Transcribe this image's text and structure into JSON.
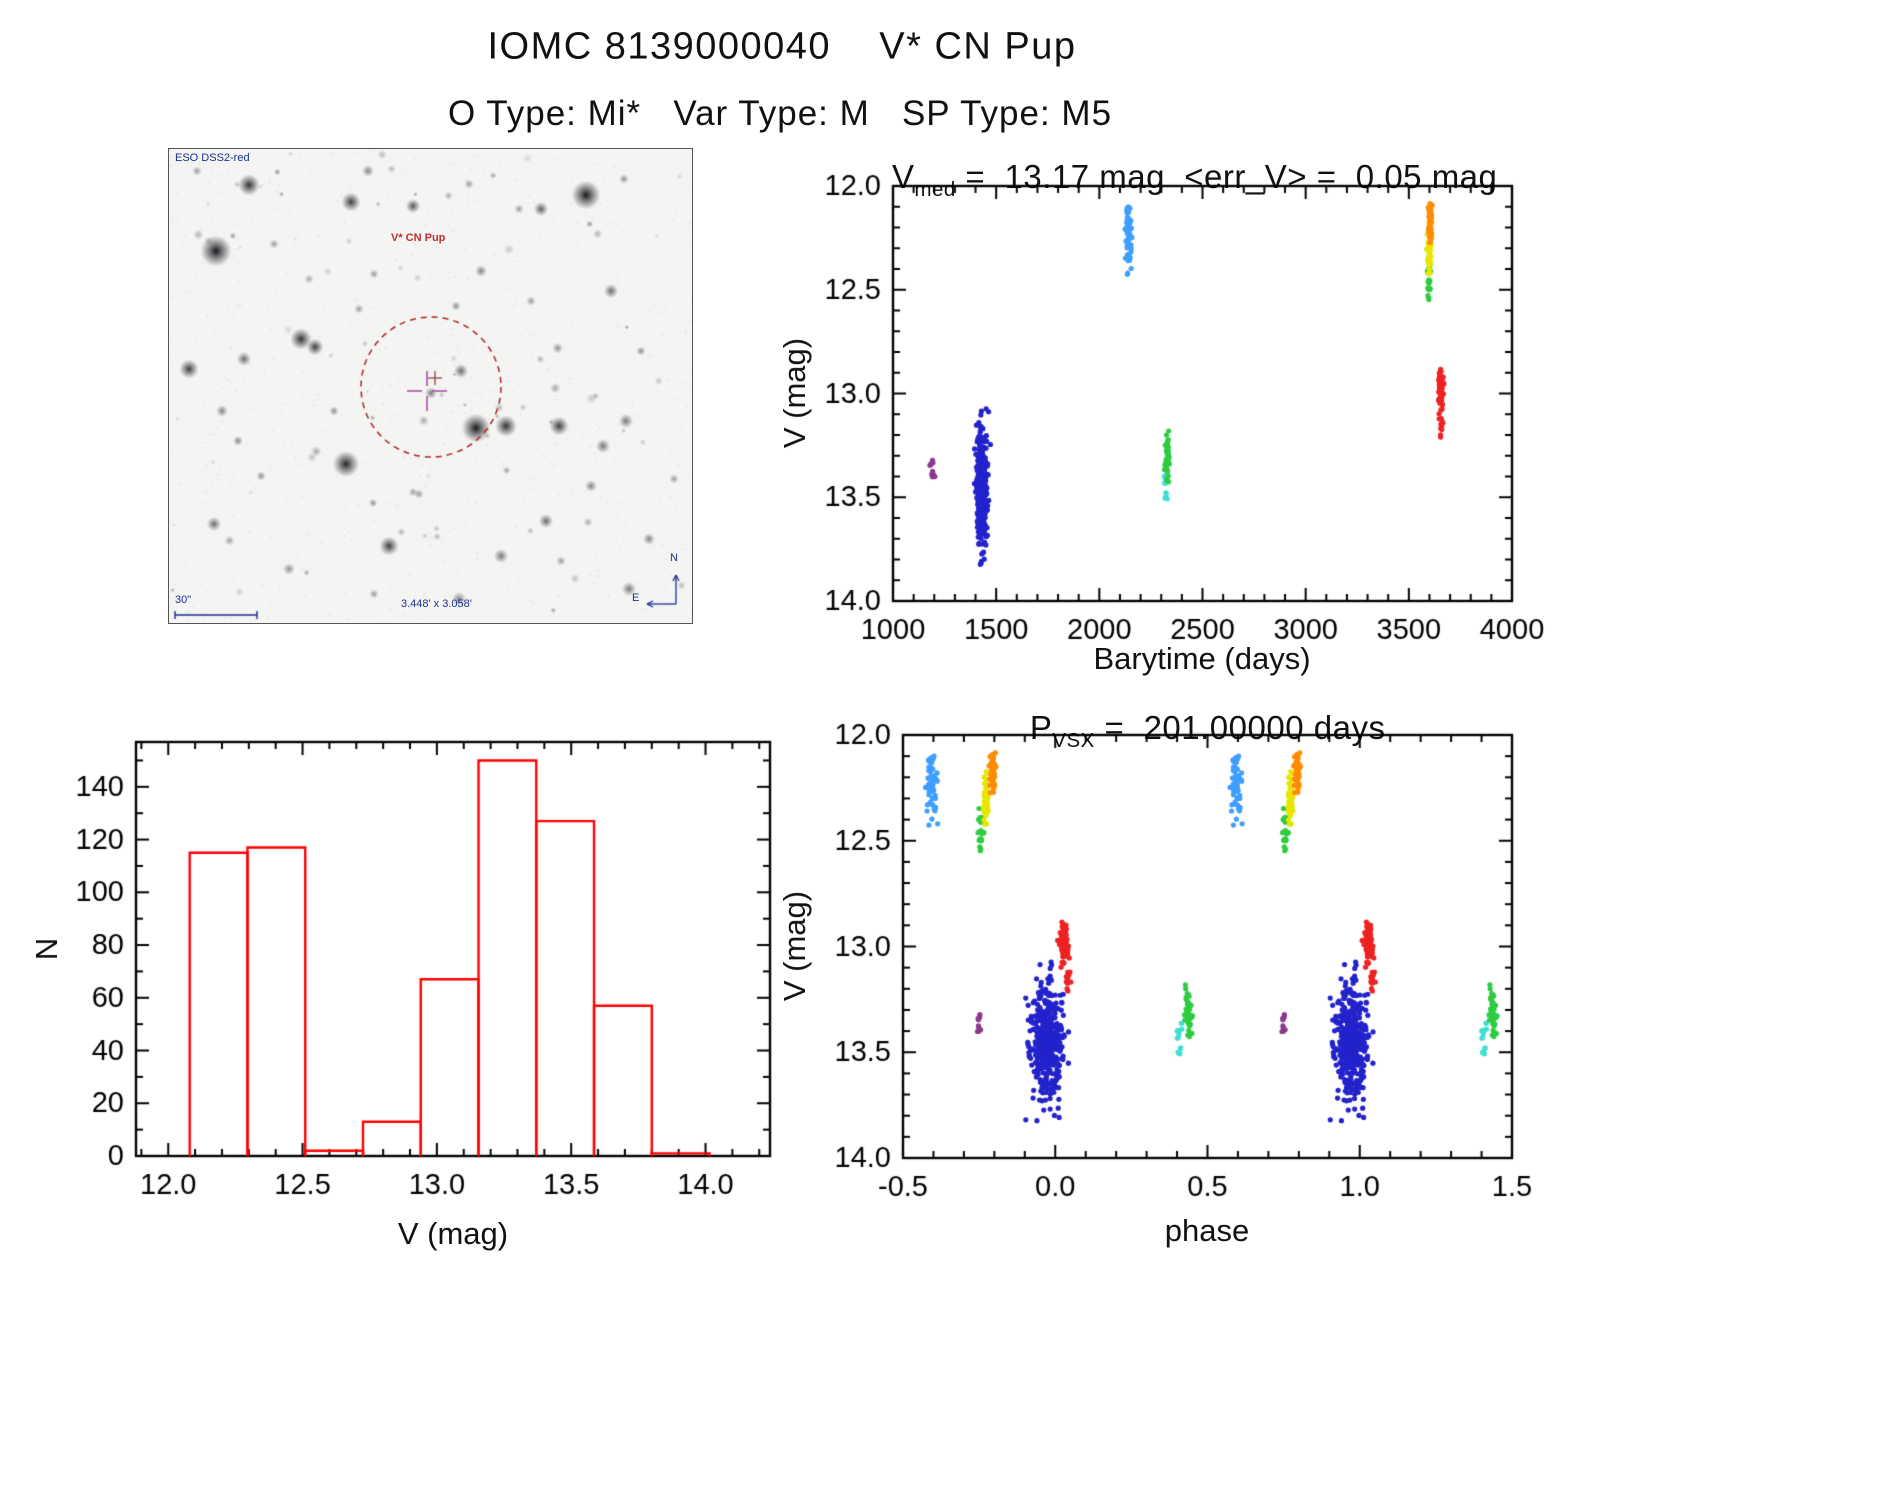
{
  "page": {
    "title": "IOMC 8139000040    V* CN Pup",
    "subtitle": "O Type: Mi*   Var Type: M   SP Type: M5"
  },
  "finding_chart": {
    "survey_label": "ESO DSS2-red",
    "target_label": "V* CN Pup",
    "scale_label": "30\"",
    "fov_label": "3.448' x 3.058'",
    "compass_north": "N",
    "compass_east": "E",
    "circle_color": "#b22222",
    "cross_color": "#a94fa9",
    "stars": [
      [
        47,
        102,
        6.5,
        0.95
      ],
      [
        80,
        36,
        4.5,
        0.85
      ],
      [
        28,
        22,
        2,
        0.4
      ],
      [
        182,
        53,
        4,
        0.8
      ],
      [
        244,
        57,
        3,
        0.7
      ],
      [
        199,
        22,
        2.5,
        0.5
      ],
      [
        417,
        46,
        6,
        0.95
      ],
      [
        372,
        60,
        3,
        0.65
      ],
      [
        455,
        30,
        2,
        0.45
      ],
      [
        132,
        190,
        4.5,
        0.85
      ],
      [
        146,
        198,
        3.5,
        0.8
      ],
      [
        20,
        220,
        4,
        0.8
      ],
      [
        75,
        210,
        3,
        0.6
      ],
      [
        53,
        262,
        2.5,
        0.5
      ],
      [
        177,
        315,
        5.5,
        0.9
      ],
      [
        307,
        279,
        6,
        0.95
      ],
      [
        337,
        277,
        4.5,
        0.85
      ],
      [
        390,
        277,
        4,
        0.8
      ],
      [
        220,
        397,
        4,
        0.8
      ],
      [
        292,
        222,
        3,
        0.6
      ],
      [
        262,
        244,
        2.5,
        0.55
      ],
      [
        442,
        142,
        3,
        0.6
      ],
      [
        472,
        202,
        2,
        0.45
      ],
      [
        457,
        272,
        3,
        0.55
      ],
      [
        434,
        297,
        3,
        0.55
      ],
      [
        377,
        372,
        3,
        0.6
      ],
      [
        332,
        407,
        3,
        0.55
      ],
      [
        392,
        412,
        2,
        0.4
      ],
      [
        45,
        375,
        3,
        0.6
      ],
      [
        92,
        327,
        2,
        0.45
      ],
      [
        69,
        292,
        2,
        0.4
      ],
      [
        165,
        262,
        2,
        0.45
      ],
      [
        190,
        160,
        2,
        0.4
      ],
      [
        287,
        157,
        2,
        0.45
      ],
      [
        312,
        122,
        2.5,
        0.5
      ],
      [
        362,
        152,
        2,
        0.4
      ],
      [
        205,
        125,
        2,
        0.4
      ],
      [
        105,
        95,
        2,
        0.4
      ],
      [
        140,
        130,
        2,
        0.35
      ],
      [
        422,
        337,
        2.5,
        0.5
      ],
      [
        350,
        60,
        2,
        0.4
      ],
      [
        300,
        35,
        2,
        0.4
      ],
      [
        480,
        390,
        2.5,
        0.5
      ],
      [
        505,
        330,
        2,
        0.4
      ],
      [
        460,
        440,
        3,
        0.55
      ],
      [
        250,
        345,
        2,
        0.4
      ],
      [
        120,
        420,
        2.5,
        0.45
      ],
      [
        205,
        445,
        2,
        0.4
      ],
      [
        290,
        450,
        3,
        0.5
      ]
    ]
  },
  "chart_data": [
    {
      "id": "lightcurve",
      "type": "scatter",
      "title": {
        "prefix": "V",
        "sub": "med",
        "rest": " =  13.17 mag  <err_V> =  0.05 mag"
      },
      "xlabel": "Barytime (days)",
      "ylabel": "V (mag)",
      "xlim": [
        1000,
        4000
      ],
      "ylim": [
        14.0,
        12.0
      ],
      "y_axis_inverted": true,
      "xticks": [
        1000,
        1500,
        2000,
        2500,
        3000,
        3500,
        4000
      ],
      "xtick_labels": [
        "1000",
        "1500",
        "2000",
        "2500",
        "3000",
        "3500",
        "4000"
      ],
      "yticks": [
        12.0,
        12.5,
        13.0,
        13.5,
        14.0
      ],
      "ytick_labels": [
        "12.0",
        "12.5",
        "13.0",
        "13.5",
        "14.0"
      ],
      "x_minor": 100,
      "y_minor": 0.1,
      "clusters_ref": "clusters"
    },
    {
      "id": "histogram",
      "type": "bar",
      "xlabel": "V (mag)",
      "ylabel": "N",
      "xlim": [
        11.88,
        14.24
      ],
      "ylim": [
        0,
        157
      ],
      "xticks": [
        12.0,
        12.5,
        13.0,
        13.5,
        14.0
      ],
      "xtick_labels": [
        "12.0",
        "12.5",
        "13.0",
        "13.5",
        "14.0"
      ],
      "yticks": [
        0,
        20,
        40,
        60,
        80,
        100,
        120,
        140
      ],
      "ytick_labels": [
        "0",
        "20",
        "40",
        "60",
        "80",
        "100",
        "120",
        "140"
      ],
      "x_minor": 0.1,
      "y_minor": 10,
      "bin_edges": [
        12.08,
        12.295,
        12.51,
        12.725,
        12.94,
        13.155,
        13.37,
        13.585,
        13.8,
        14.015
      ],
      "values": [
        115,
        117,
        2,
        13,
        67,
        150,
        127,
        57,
        1
      ],
      "bar_color": "#ff0000"
    },
    {
      "id": "phase",
      "type": "scatter",
      "title": {
        "prefix": "P",
        "sub": "VSX",
        "rest": " =  201.00000 days"
      },
      "xlabel": "phase",
      "ylabel": "V (mag)",
      "xlim": [
        -0.5,
        1.5
      ],
      "ylim": [
        14.0,
        12.0
      ],
      "y_axis_inverted": true,
      "xticks": [
        -0.5,
        0.0,
        0.5,
        1.0,
        1.5
      ],
      "xtick_labels": [
        "-0.5",
        "0.0",
        "0.5",
        "1.0",
        "1.5"
      ],
      "yticks": [
        12.0,
        12.5,
        13.0,
        13.5,
        14.0
      ],
      "ytick_labels": [
        "12.0",
        "12.5",
        "13.0",
        "13.5",
        "14.0"
      ],
      "x_minor": 0.1,
      "y_minor": 0.1,
      "phase_repeat": 1.0,
      "clusters_ref": "clusters"
    }
  ],
  "clusters": [
    {
      "name": "purple",
      "color": "#8b3a8b",
      "n": 12,
      "bary": [
        1190,
        5
      ],
      "phase": [
        -0.25,
        0.004
      ],
      "v": {
        "mode": "uniform",
        "min": 13.32,
        "max": 13.42
      }
    },
    {
      "name": "navy",
      "color": "#2323cc",
      "n": 450,
      "bary": [
        1430,
        13
      ],
      "phase": [
        -0.03,
        0.024
      ],
      "v": {
        "mode": "gauss",
        "mu": 13.45,
        "sig": 0.14,
        "min": 13.05,
        "max": 13.85
      }
    },
    {
      "name": "lightblue",
      "color": "#3f9fff",
      "n": 60,
      "bary": [
        2140,
        8
      ],
      "phase": [
        -0.405,
        0.009
      ],
      "v": {
        "mode": "gauss",
        "mu": 12.25,
        "sig": 0.09,
        "min": 12.07,
        "max": 12.47
      }
    },
    {
      "name": "cyan",
      "color": "#40e0d0",
      "n": 13,
      "bary": [
        2322,
        5
      ],
      "phase": [
        0.41,
        0.005
      ],
      "v": {
        "mode": "uniform",
        "min": 13.36,
        "max": 13.52
      }
    },
    {
      "name": "green-b",
      "color": "#2ecc40",
      "n": 40,
      "bary": [
        2330,
        5
      ],
      "phase": [
        0.437,
        0.005
      ],
      "v": {
        "mode": "gauss",
        "mu": 13.3,
        "sig": 0.07,
        "min": 13.15,
        "max": 13.45
      }
    },
    {
      "name": "green-a",
      "color": "#2ecc40",
      "n": 26,
      "bary": [
        3597,
        4
      ],
      "phase": [
        -0.245,
        0.004
      ],
      "v": {
        "mode": "gauss",
        "mu": 12.44,
        "sig": 0.06,
        "min": 12.28,
        "max": 12.56
      }
    },
    {
      "name": "yellow",
      "color": "#e6e600",
      "n": 48,
      "bary": [
        3600,
        4
      ],
      "phase": [
        -0.228,
        0.004
      ],
      "v": {
        "mode": "gauss",
        "mu": 12.3,
        "sig": 0.07,
        "min": 12.13,
        "max": 12.46
      }
    },
    {
      "name": "orange",
      "color": "#ff8c00",
      "n": 52,
      "bary": [
        3603,
        4
      ],
      "phase": [
        -0.205,
        0.005
      ],
      "v": {
        "mode": "gauss",
        "mu": 12.17,
        "sig": 0.055,
        "min": 12.07,
        "max": 12.3
      }
    },
    {
      "name": "red-main",
      "color": "#ee2222",
      "n": 75,
      "bary": [
        3655,
        6
      ],
      "phase": [
        0.03,
        0.008
      ],
      "v": {
        "mode": "gauss",
        "mu": 12.97,
        "sig": 0.05,
        "min": 12.86,
        "max": 13.1
      }
    },
    {
      "name": "red-low",
      "color": "#ee2222",
      "n": 12,
      "bary": [
        3655,
        4
      ],
      "phase": [
        0.045,
        0.005
      ],
      "v": {
        "mode": "uniform",
        "min": 13.12,
        "max": 13.22
      }
    }
  ]
}
